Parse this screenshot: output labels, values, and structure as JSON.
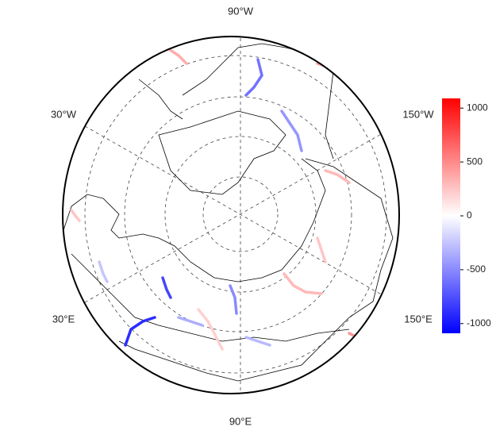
{
  "chart_data": {
    "type": "map",
    "lon_labels": [
      "90°W",
      "30°W",
      "150°W",
      "30°E",
      "150°E",
      "90°E"
    ],
    "values": [
      -900,
      -600,
      -450,
      300,
      250,
      -800,
      350,
      400,
      -350,
      -300,
      200,
      450,
      300,
      -500,
      -250,
      250
    ],
    "colorbar": {
      "lim": [
        -1090,
        1090
      ],
      "ticks": [
        1000,
        500,
        0,
        -500,
        -1000
      ]
    }
  }
}
